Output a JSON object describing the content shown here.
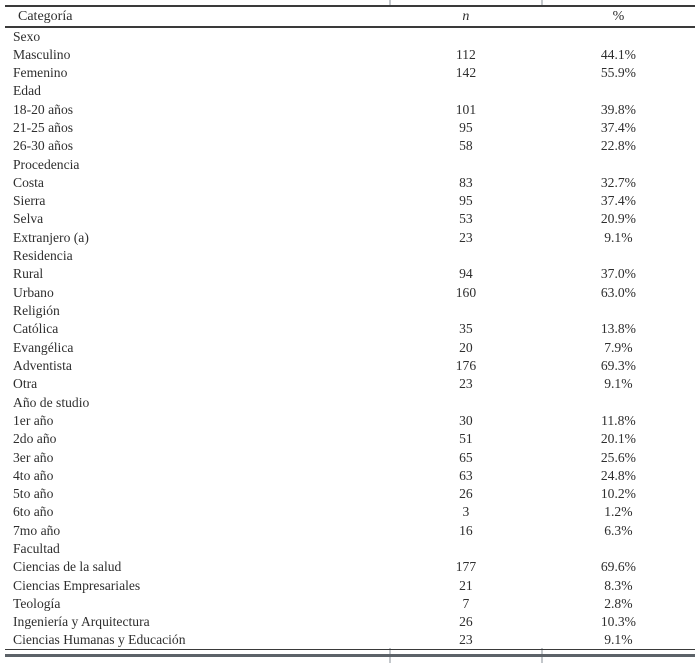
{
  "colors": {
    "rule_dark": "#3a3a3a",
    "rule_bottom": "#5c6268",
    "text": "#2e2e2e",
    "tick": "#c3c7cb",
    "bg": "#ffffff"
  },
  "table": {
    "headers": {
      "category": "Categoría",
      "n": "n",
      "pct": "%"
    },
    "rows": [
      {
        "label": "Sexo",
        "n": "",
        "pct": "",
        "type": "section"
      },
      {
        "label": "Masculino",
        "n": "112",
        "pct": "44.1%",
        "type": "data"
      },
      {
        "label": "Femenino",
        "n": "142",
        "pct": "55.9%",
        "type": "data"
      },
      {
        "label": "Edad",
        "n": "",
        "pct": "",
        "type": "section"
      },
      {
        "label": "18-20 años",
        "n": "101",
        "pct": "39.8%",
        "type": "data"
      },
      {
        "label": "21-25 años",
        "n": "95",
        "pct": "37.4%",
        "type": "data"
      },
      {
        "label": "26-30 años",
        "n": "58",
        "pct": "22.8%",
        "type": "data"
      },
      {
        "label": "Procedencia",
        "n": "",
        "pct": "",
        "type": "section"
      },
      {
        "label": "Costa",
        "n": "83",
        "pct": "32.7%",
        "type": "data"
      },
      {
        "label": "Sierra",
        "n": "95",
        "pct": "37.4%",
        "type": "data"
      },
      {
        "label": "Selva",
        "n": "53",
        "pct": "20.9%",
        "type": "data"
      },
      {
        "label": "Extranjero (a)",
        "n": "23",
        "pct": "9.1%",
        "type": "data"
      },
      {
        "label": "Residencia",
        "n": "",
        "pct": "",
        "type": "section"
      },
      {
        "label": "Rural",
        "n": "94",
        "pct": "37.0%",
        "type": "data"
      },
      {
        "label": "Urbano",
        "n": "160",
        "pct": "63.0%",
        "type": "data"
      },
      {
        "label": "Religión",
        "n": "",
        "pct": "",
        "type": "section"
      },
      {
        "label": "Católica",
        "n": "35",
        "pct": "13.8%",
        "type": "data"
      },
      {
        "label": "Evangélica",
        "n": "20",
        "pct": "7.9%",
        "type": "data"
      },
      {
        "label": "Adventista",
        "n": "176",
        "pct": "69.3%",
        "type": "data"
      },
      {
        "label": "Otra",
        "n": "23",
        "pct": "9.1%",
        "type": "data"
      },
      {
        "label": "Año de studio",
        "n": "",
        "pct": "",
        "type": "section"
      },
      {
        "label": "1er año",
        "n": "30",
        "pct": "11.8%",
        "type": "data"
      },
      {
        "label": "2do año",
        "n": "51",
        "pct": "20.1%",
        "type": "data"
      },
      {
        "label": "3er año",
        "n": "65",
        "pct": "25.6%",
        "type": "data"
      },
      {
        "label": "4to año",
        "n": "63",
        "pct": "24.8%",
        "type": "data"
      },
      {
        "label": "5to año",
        "n": "26",
        "pct": "10.2%",
        "type": "data"
      },
      {
        "label": "6to año",
        "n": "3",
        "pct": "1.2%",
        "type": "data"
      },
      {
        "label": "7mo año",
        "n": "16",
        "pct": "6.3%",
        "type": "data"
      },
      {
        "label": "Facultad",
        "n": "",
        "pct": "",
        "type": "section"
      },
      {
        "label": "Ciencias de la salud",
        "n": "177",
        "pct": "69.6%",
        "type": "data"
      },
      {
        "label": "Ciencias Empresariales",
        "n": "21",
        "pct": "8.3%",
        "type": "data"
      },
      {
        "label": "Teología",
        "n": "7",
        "pct": "2.8%",
        "type": "data"
      },
      {
        "label": "Ingeniería y Arquitectura",
        "n": "26",
        "pct": "10.3%",
        "type": "data"
      },
      {
        "label": "Ciencias Humanas y Educación",
        "n": "23",
        "pct": "9.1%",
        "type": "data"
      }
    ]
  }
}
